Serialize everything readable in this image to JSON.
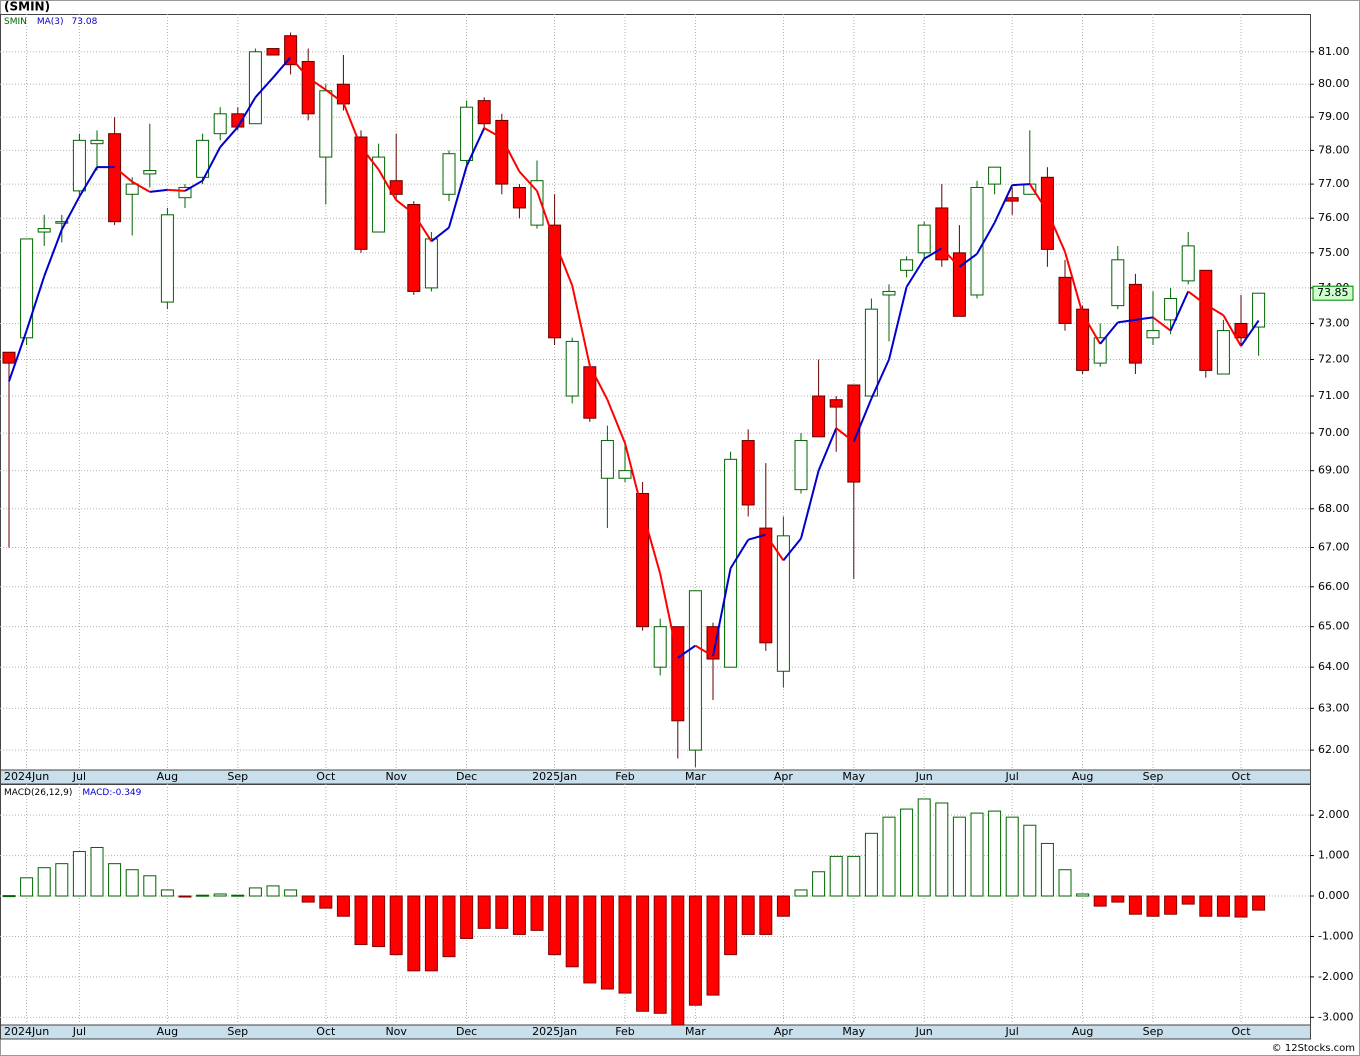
{
  "chart_data": [
    {
      "type": "candlestick",
      "title": "(SMIN)",
      "symbol": "SMIN",
      "categories": [
        null,
        "2024Jun",
        null,
        null,
        "Jul",
        null,
        null,
        null,
        null,
        "Aug",
        null,
        null,
        null,
        "Sep",
        null,
        null,
        null,
        null,
        "Oct",
        null,
        null,
        null,
        "Nov",
        null,
        null,
        null,
        "Dec",
        null,
        null,
        null,
        null,
        "2025Jan",
        null,
        null,
        null,
        "Feb",
        null,
        null,
        null,
        "Mar",
        null,
        null,
        null,
        null,
        "Apr",
        null,
        null,
        null,
        "May",
        null,
        null,
        null,
        "Jun",
        null,
        null,
        null,
        null,
        "Jul",
        null,
        null,
        null,
        "Aug",
        null,
        null,
        null,
        "Sep",
        null,
        null,
        null,
        null,
        "Oct",
        null
      ],
      "open": [
        72.2,
        72.6,
        75.6,
        75.9,
        76.8,
        78.2,
        78.5,
        76.7,
        77.3,
        73.6,
        76.6,
        77.2,
        78.5,
        79.1,
        78.8,
        81.1,
        81.5,
        80.7,
        77.8,
        80.0,
        78.4,
        75.6,
        77.1,
        76.4,
        74.0,
        76.7,
        77.7,
        79.5,
        78.9,
        76.9,
        75.8,
        75.8,
        71.0,
        71.8,
        68.8,
        68.8,
        68.4,
        64.0,
        65.0,
        62.0,
        65.0,
        64.0,
        69.8,
        67.5,
        63.9,
        68.5,
        71.0,
        70.9,
        71.3,
        71.0,
        73.8,
        74.5,
        75.0,
        76.3,
        75.0,
        73.8,
        77.0,
        76.6,
        76.7,
        77.2,
        74.3,
        73.4,
        71.9,
        73.5,
        74.1,
        72.6,
        73.1,
        74.2,
        74.5,
        71.6,
        73.0,
        72.9
      ],
      "high": [
        72.2,
        75.4,
        76.1,
        76.1,
        78.5,
        78.6,
        79.0,
        77.2,
        78.8,
        76.3,
        77.0,
        78.5,
        79.3,
        79.3,
        81.1,
        81.1,
        81.6,
        81.1,
        80.0,
        80.9,
        78.6,
        78.2,
        78.5,
        76.5,
        75.6,
        78.0,
        79.5,
        79.6,
        79.1,
        77.0,
        77.7,
        76.7,
        72.6,
        71.9,
        70.2,
        69.8,
        68.7,
        65.2,
        65.0,
        65.9,
        65.1,
        69.5,
        70.1,
        69.2,
        67.8,
        70.0,
        72.0,
        71.0,
        71.3,
        73.7,
        74.1,
        74.9,
        75.9,
        77.0,
        75.8,
        77.1,
        77.5,
        76.9,
        78.6,
        77.5,
        74.8,
        73.5,
        73.0,
        75.2,
        74.4,
        73.9,
        74.0,
        75.6,
        74.5,
        73.1,
        73.8,
        73.85
      ],
      "low": [
        67.0,
        72.4,
        75.2,
        75.3,
        76.6,
        77.4,
        75.8,
        75.5,
        76.9,
        73.4,
        76.3,
        77.0,
        78.3,
        78.6,
        78.8,
        80.9,
        80.3,
        78.9,
        76.4,
        79.2,
        75.0,
        75.6,
        76.5,
        73.8,
        73.9,
        76.5,
        77.6,
        78.6,
        76.7,
        76.0,
        75.7,
        72.4,
        70.8,
        70.3,
        67.5,
        68.7,
        64.9,
        63.8,
        61.8,
        61.6,
        63.2,
        64.0,
        67.8,
        64.4,
        63.5,
        68.4,
        69.9,
        69.5,
        66.2,
        71.0,
        72.5,
        74.3,
        74.8,
        74.6,
        73.2,
        73.7,
        76.7,
        76.1,
        76.7,
        74.6,
        72.8,
        71.6,
        71.8,
        73.4,
        71.6,
        72.4,
        72.7,
        74.1,
        71.5,
        71.6,
        72.4,
        72.1
      ],
      "close": [
        71.9,
        75.4,
        75.7,
        75.9,
        78.3,
        78.3,
        75.9,
        77.0,
        77.4,
        76.1,
        76.9,
        78.3,
        79.1,
        78.7,
        81.0,
        80.9,
        80.6,
        79.1,
        79.8,
        79.4,
        75.1,
        77.8,
        76.7,
        73.9,
        75.4,
        77.9,
        79.3,
        78.8,
        77.0,
        76.3,
        77.1,
        72.6,
        72.5,
        70.4,
        69.8,
        69.0,
        65.0,
        65.0,
        62.7,
        65.9,
        64.2,
        69.3,
        68.1,
        64.6,
        67.3,
        69.8,
        69.9,
        70.7,
        68.7,
        73.4,
        73.9,
        74.8,
        75.8,
        74.8,
        73.2,
        76.9,
        77.5,
        76.5,
        77.0,
        75.1,
        73.0,
        71.7,
        72.6,
        74.8,
        71.9,
        72.8,
        73.7,
        75.2,
        71.7,
        72.8,
        72.6,
        73.85
      ],
      "up_color": "#006400",
      "down_color": "#ff0000",
      "ma": {
        "name": "MA(3)",
        "up_color": "#0000cc",
        "down_color": "#ff0000",
        "values": [
          71.4,
          72.8,
          74.33,
          75.67,
          76.63,
          77.5,
          77.5,
          77.07,
          76.77,
          76.83,
          76.8,
          77.1,
          78.1,
          78.7,
          79.6,
          80.2,
          80.83,
          80.2,
          79.83,
          79.43,
          78.1,
          77.43,
          76.53,
          76.13,
          75.33,
          75.73,
          77.53,
          78.67,
          78.37,
          77.37,
          76.8,
          75.33,
          74.07,
          71.83,
          70.9,
          69.73,
          67.93,
          66.33,
          64.23,
          64.53,
          64.27,
          66.47,
          67.2,
          67.33,
          66.67,
          67.23,
          69.0,
          70.13,
          69.77,
          70.93,
          72.0,
          74.03,
          74.83,
          75.13,
          74.6,
          74.97,
          75.87,
          76.97,
          77.0,
          76.2,
          75.03,
          73.27,
          72.43,
          73.03,
          73.1,
          73.17,
          72.8,
          73.9,
          73.53,
          73.23,
          72.37,
          73.08
        ]
      },
      "ylim": [
        61.53,
        82.18
      ],
      "log_scale": true,
      "grid": true,
      "yticks": [
        {
          "value": 62,
          "label": "62.00"
        },
        {
          "value": 63,
          "label": "63.00"
        },
        {
          "value": 64,
          "label": "64.00"
        },
        {
          "value": 65,
          "label": "65.00"
        },
        {
          "value": 66,
          "label": "66.00"
        },
        {
          "value": 67,
          "label": "67.00"
        },
        {
          "value": 68,
          "label": "68.00"
        },
        {
          "value": 69,
          "label": "69.00"
        },
        {
          "value": 70,
          "label": "70.00"
        },
        {
          "value": 71,
          "label": "71.00"
        },
        {
          "value": 72,
          "label": "72.00"
        },
        {
          "value": 73,
          "label": "73.00"
        },
        {
          "value": 74,
          "label": "74.00"
        },
        {
          "value": 75,
          "label": "75.00"
        },
        {
          "value": 76,
          "label": "76.00"
        },
        {
          "value": 77,
          "label": "77.00"
        },
        {
          "value": 78,
          "label": "78.00"
        },
        {
          "value": 79,
          "label": "79.00"
        },
        {
          "value": 80,
          "label": "80.00"
        },
        {
          "value": 81,
          "label": "81.00"
        }
      ]
    },
    {
      "type": "bar",
      "title": "MACD(26,12,9)",
      "readout_prefix": "MACD:",
      "values": [
        0.01,
        0.45,
        0.7,
        0.8,
        1.1,
        1.2,
        0.8,
        0.65,
        0.5,
        0.15,
        -0.02,
        0.02,
        0.05,
        0.02,
        0.2,
        0.25,
        0.15,
        -0.15,
        -0.3,
        -0.5,
        -1.2,
        -1.25,
        -1.45,
        -1.85,
        -1.85,
        -1.5,
        -1.05,
        -0.8,
        -0.8,
        -0.95,
        -0.85,
        -1.45,
        -1.75,
        -2.15,
        -2.3,
        -2.4,
        -2.85,
        -2.9,
        -3.2,
        -2.7,
        -2.45,
        -1.45,
        -0.95,
        -0.95,
        -0.5,
        0.15,
        0.6,
        0.98,
        0.98,
        1.55,
        1.95,
        2.15,
        2.4,
        2.3,
        1.95,
        2.05,
        2.1,
        1.95,
        1.75,
        1.3,
        0.65,
        0.05,
        -0.25,
        -0.15,
        -0.45,
        -0.5,
        -0.45,
        -0.2,
        -0.5,
        -0.5,
        -0.52,
        -0.349
      ],
      "up_color": "#006400",
      "down_color": "#ff0000",
      "ylim": [
        -3.19,
        2.77
      ],
      "grid": true,
      "yticks": [
        {
          "value": 2,
          "label": "2.000"
        },
        {
          "value": 1,
          "label": "1.000"
        },
        {
          "value": 0,
          "label": "0.000"
        },
        {
          "value": -1,
          "label": "-1.000"
        },
        {
          "value": -2,
          "label": "-2.000"
        },
        {
          "value": -3,
          "label": "-3.000"
        }
      ]
    }
  ],
  "footer": "© 12Stocks.com"
}
